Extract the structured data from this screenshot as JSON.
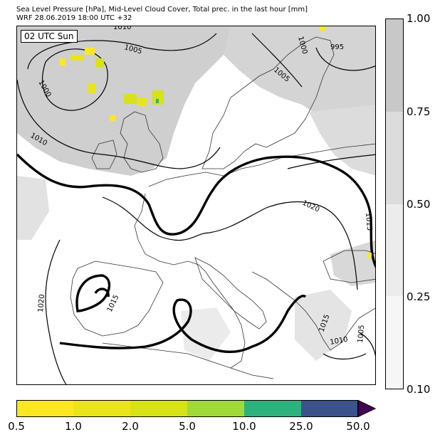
{
  "header": {
    "line1": "Sea Level Pressure [hPa], Mid-Level Cloud Cover, Total prec. in the last hour [mm]",
    "line2": "WRF 28.06.2019 18:00 UTC +32"
  },
  "map": {
    "time_label": "02 UTC Sun",
    "isobar_labels": [
      "1010",
      "1005",
      "1000",
      "1010",
      "1000",
      "995",
      "1005",
      "1020",
      "1015",
      "1015",
      "1020",
      "1015",
      "1005",
      "1010"
    ]
  },
  "cloud_colorbar": {
    "ticks": [
      "1.00",
      "0.75",
      "0.50",
      "0.25",
      "0.10"
    ],
    "colors": [
      "#c8c8c8",
      "#dcdcdc",
      "#ececec",
      "#f6f6f6"
    ]
  },
  "precip_colorbar": {
    "ticks": [
      "0.5",
      "1.0",
      "2.0",
      "5.0",
      "10.0",
      "25.0",
      "50.0"
    ],
    "colors": [
      "#fde725",
      "#eae51a",
      "#d7e219",
      "#a0da39",
      "#2db27d",
      "#3b528b",
      "#440154"
    ]
  }
}
